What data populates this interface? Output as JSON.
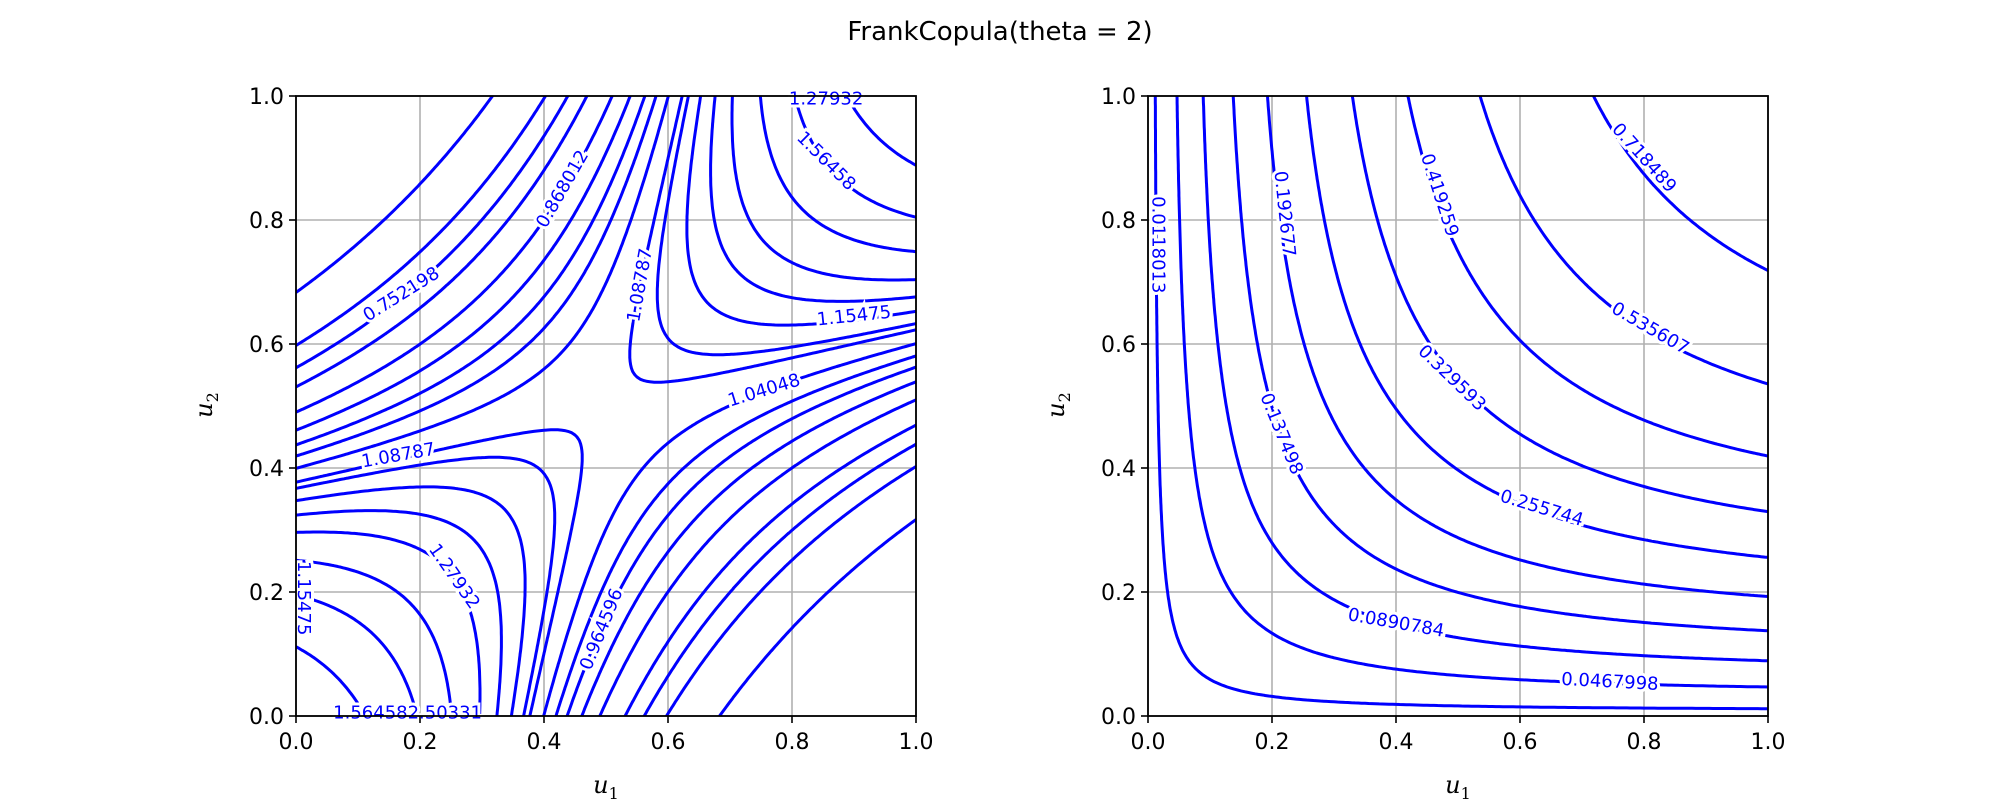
{
  "figure": {
    "suptitle": "FrankCopula(theta = 2)",
    "line_color": "#0000ff",
    "grid_color": "#b0b0b0"
  },
  "chart_data": [
    {
      "type": "contour",
      "name": "left",
      "xlabel": "u",
      "xlabel_sub": "1",
      "ylabel": "u",
      "ylabel_sub": "2",
      "xlim": [
        0.0,
        1.0
      ],
      "ylim": [
        0.0,
        1.0
      ],
      "xticks": [
        "0.0",
        "0.2",
        "0.4",
        "0.6",
        "0.8",
        "1.0"
      ],
      "yticks": [
        "0.0",
        "0.2",
        "0.4",
        "0.6",
        "0.8",
        "1.0"
      ],
      "grid": true,
      "contour_labels": [
        {
          "text": "0.752198",
          "x": 0.17,
          "y": 0.68,
          "angle": -32
        },
        {
          "text": "0.868012",
          "x": 0.43,
          "y": 0.85,
          "angle": -60
        },
        {
          "text": "1.08787",
          "x": 0.555,
          "y": 0.695,
          "angle": -80
        },
        {
          "text": "1.56458",
          "x": 0.855,
          "y": 0.895,
          "angle": 45
        },
        {
          "text": "1.15475",
          "x": 0.9,
          "y": 0.645,
          "angle": -6
        },
        {
          "text": "1.04048",
          "x": 0.755,
          "y": 0.525,
          "angle": -17
        },
        {
          "text": "1.08787",
          "x": 0.165,
          "y": 0.42,
          "angle": -10
        },
        {
          "text": "1.27932",
          "x": 0.255,
          "y": 0.225,
          "angle": 55
        },
        {
          "text": "0.964596",
          "x": 0.493,
          "y": 0.14,
          "angle": -68
        },
        {
          "text": "1.27932",
          "x": 0.855,
          "y": 0.995,
          "angle": 0
        },
        {
          "text": "1.56458",
          "x": 0.12,
          "y": 0.005,
          "angle": 0
        },
        {
          "text": "2.50331",
          "x": 0.24,
          "y": 0.005,
          "angle": 0
        },
        {
          "text": "1.15475",
          "x": 0.012,
          "y": 0.19,
          "angle": 90
        }
      ]
    },
    {
      "type": "contour",
      "name": "right",
      "xlabel": "u",
      "xlabel_sub": "1",
      "ylabel": "u",
      "ylabel_sub": "2",
      "xlim": [
        0.0,
        1.0
      ],
      "ylim": [
        0.0,
        1.0
      ],
      "xticks": [
        "0.0",
        "0.2",
        "0.4",
        "0.6",
        "0.8",
        "1.0"
      ],
      "yticks": [
        "0.0",
        "0.2",
        "0.4",
        "0.6",
        "0.8",
        "1.0"
      ],
      "grid": true,
      "contour_labels": [
        {
          "text": "0.0118013",
          "x": 0.016,
          "y": 0.76,
          "angle": 90
        },
        {
          "text": "0.192677",
          "x": 0.22,
          "y": 0.81,
          "angle": 84
        },
        {
          "text": "0.137498",
          "x": 0.215,
          "y": 0.455,
          "angle": 68
        },
        {
          "text": "0.419259",
          "x": 0.47,
          "y": 0.84,
          "angle": 72
        },
        {
          "text": "0.718489",
          "x": 0.8,
          "y": 0.9,
          "angle": 48
        },
        {
          "text": "0.535607",
          "x": 0.81,
          "y": 0.625,
          "angle": 30
        },
        {
          "text": "0.329593",
          "x": 0.49,
          "y": 0.545,
          "angle": 44
        },
        {
          "text": "0.255744",
          "x": 0.635,
          "y": 0.335,
          "angle": 17
        },
        {
          "text": "0.0890784",
          "x": 0.4,
          "y": 0.15,
          "angle": 10
        },
        {
          "text": "0.0467998",
          "x": 0.745,
          "y": 0.055,
          "angle": 3
        }
      ]
    }
  ]
}
